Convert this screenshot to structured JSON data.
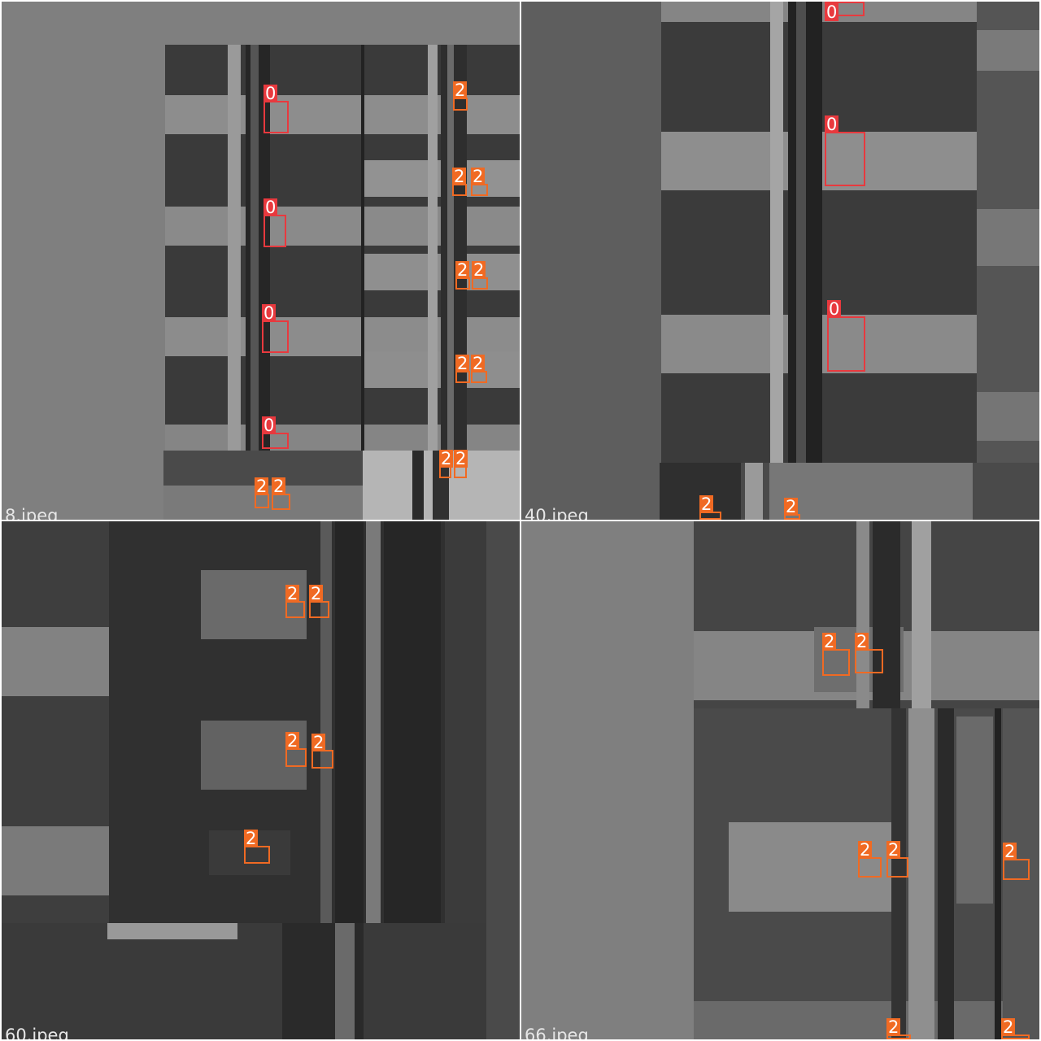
{
  "colors": {
    "class_0": "#e8393e",
    "class_2": "#f06a23"
  },
  "tiles": [
    {
      "filename": "8.jpeg"
    },
    {
      "filename": "40.jpeg"
    },
    {
      "filename": "60.jpeg"
    },
    {
      "filename": "66.jpeg"
    }
  ],
  "labels": {
    "class_0": "0",
    "class_2": "2"
  }
}
